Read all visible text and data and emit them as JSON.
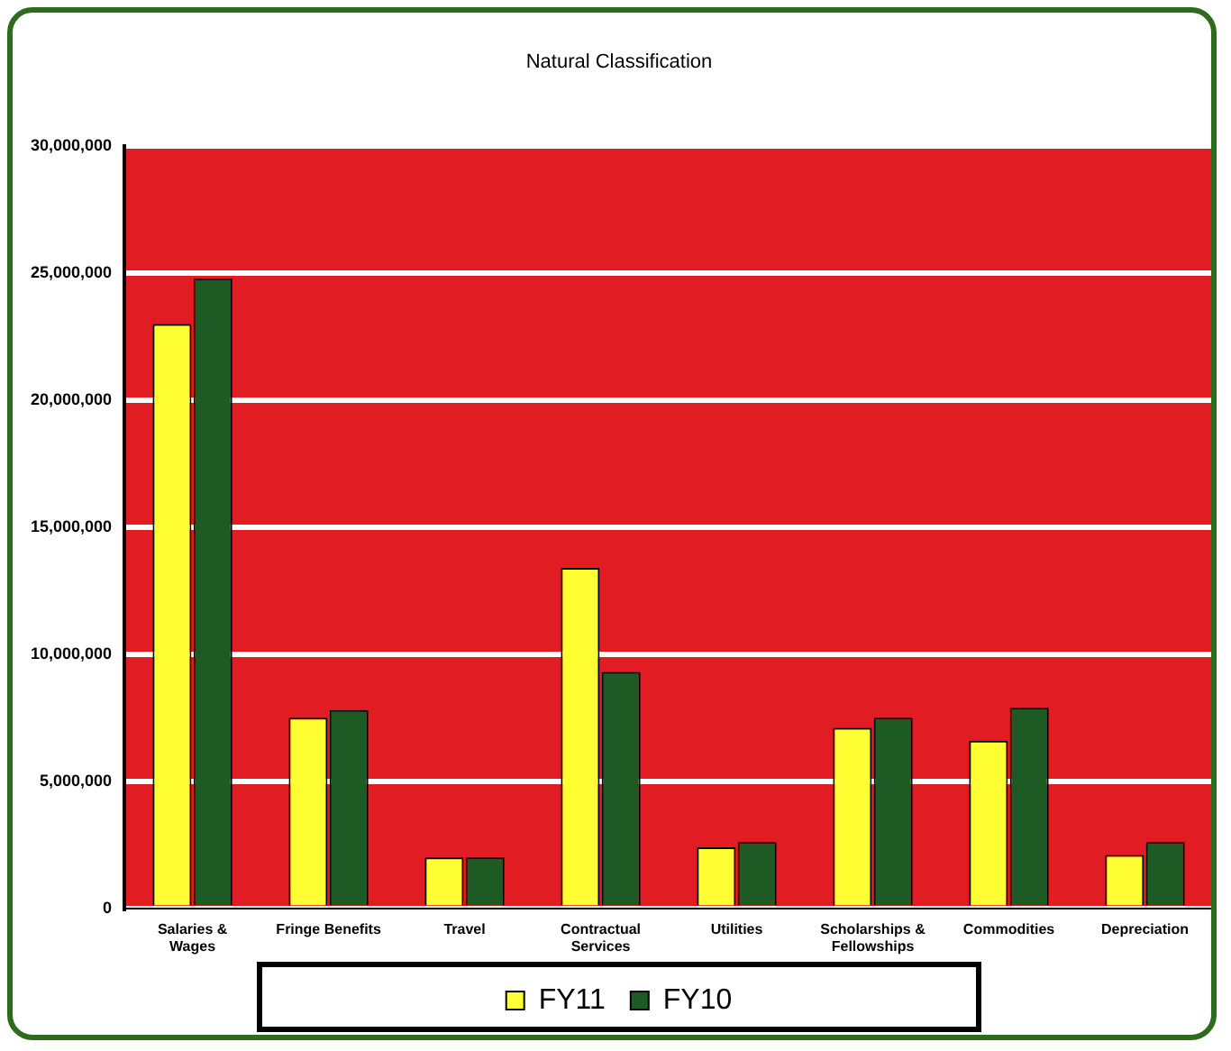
{
  "chart_data": {
    "type": "bar",
    "title": "Natural Classification",
    "categories": [
      "Salaries &\nWages",
      "Fringe Benefits",
      "Travel",
      "Contractual\nServices",
      "Utilities",
      "Scholarships &\nFellowships",
      "Commodities",
      "Depreciation"
    ],
    "series": [
      {
        "name": "FY11",
        "color": "#ffff33",
        "values": [
          23000000,
          7500000,
          2000000,
          13400000,
          2400000,
          7100000,
          6600000,
          2100000
        ]
      },
      {
        "name": "FY10",
        "color": "#1e5b24",
        "values": [
          24800000,
          7800000,
          2000000,
          9300000,
          2600000,
          7500000,
          7900000,
          2600000
        ]
      }
    ],
    "ylim": [
      0,
      30000000
    ],
    "yticks": [
      0,
      {
        "value": 5000000,
        "label": "5,000,000"
      },
      {
        "value": 10000000,
        "label": "10,000,000"
      },
      {
        "value": 15000000,
        "label": "15,000,000"
      },
      {
        "value": 20000000,
        "label": "20,000,000"
      },
      {
        "value": 25000000,
        "label": "25,000,000"
      },
      {
        "value": 30000000,
        "label": "30,000,000"
      }
    ],
    "grid": "y",
    "legend": "bottom"
  }
}
